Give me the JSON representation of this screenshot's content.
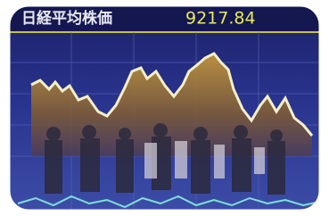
{
  "display": {
    "label": "日経平均株価",
    "value": "9217.84"
  }
}
